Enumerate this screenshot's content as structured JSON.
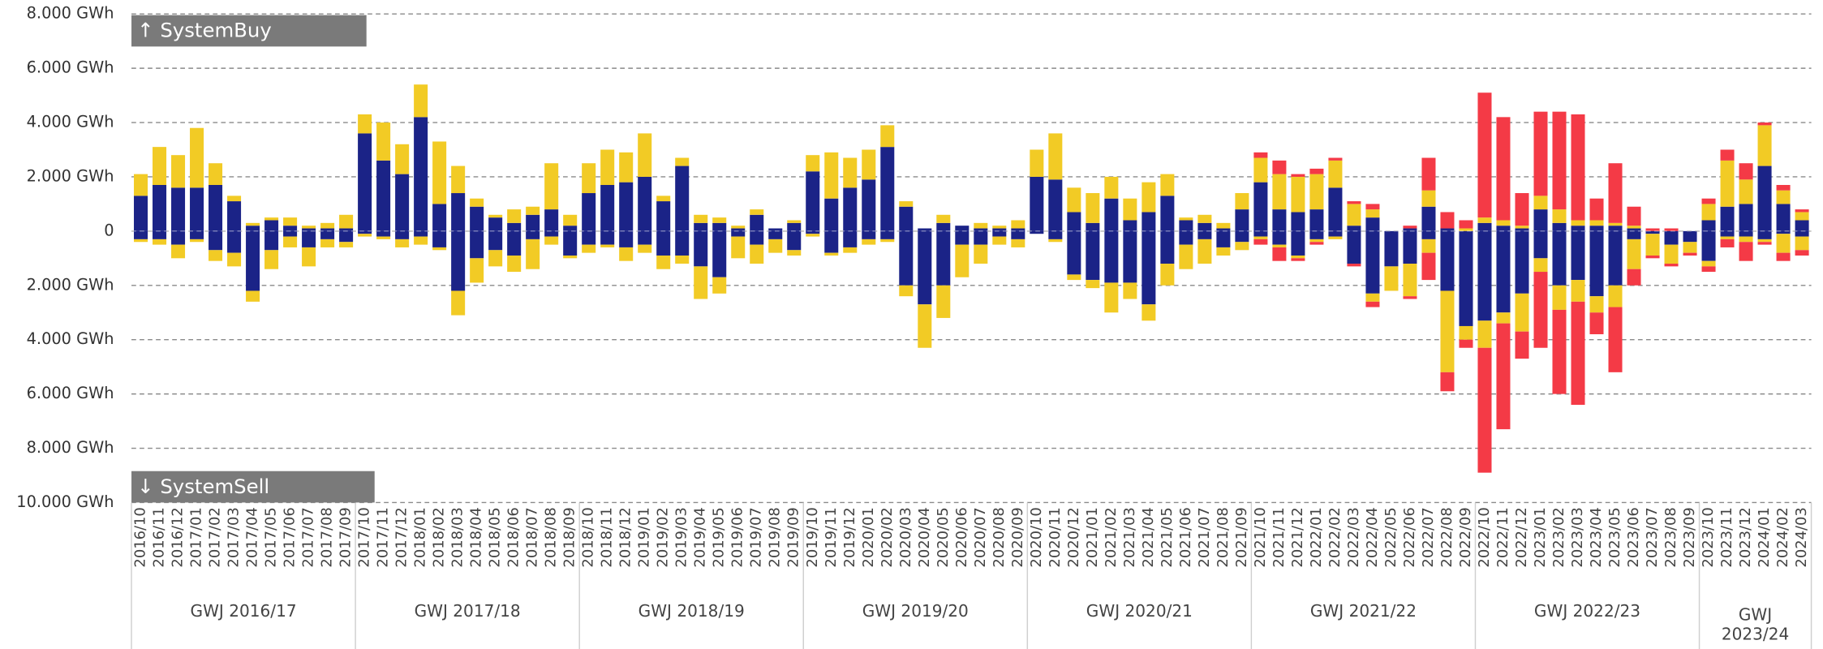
{
  "chart_data": {
    "type": "bar",
    "stacked": true,
    "annotations": [
      "↑ SystemBuy",
      "↓ SystemSell"
    ],
    "groups": [
      "GWJ 2016/17",
      "GWJ 2017/18",
      "GWJ 2018/19",
      "GWJ 2019/20",
      "GWJ 2020/21",
      "GWJ 2021/22",
      "GWJ 2022/23",
      "GWJ 2023/24"
    ],
    "categories": [
      "2016/10",
      "2016/11",
      "2016/12",
      "2017/01",
      "2017/02",
      "2017/03",
      "2017/04",
      "2017/05",
      "2017/06",
      "2017/07",
      "2017/08",
      "2017/09",
      "2017/10",
      "2017/11",
      "2017/12",
      "2018/01",
      "2018/02",
      "2018/03",
      "2018/04",
      "2018/05",
      "2018/06",
      "2018/07",
      "2018/08",
      "2018/09",
      "2018/10",
      "2018/11",
      "2018/12",
      "2019/01",
      "2019/02",
      "2019/03",
      "2019/04",
      "2019/05",
      "2019/06",
      "2019/07",
      "2019/08",
      "2019/09",
      "2019/10",
      "2019/11",
      "2019/12",
      "2020/01",
      "2020/02",
      "2020/03",
      "2020/04",
      "2020/05",
      "2020/06",
      "2020/07",
      "2020/08",
      "2020/09",
      "2020/10",
      "2020/11",
      "2020/12",
      "2021/01",
      "2021/02",
      "2021/03",
      "2021/04",
      "2021/05",
      "2021/06",
      "2021/07",
      "2021/08",
      "2021/09",
      "2021/10",
      "2021/11",
      "2021/12",
      "2022/01",
      "2022/02",
      "2022/03",
      "2022/04",
      "2022/05",
      "2022/06",
      "2022/07",
      "2022/08",
      "2022/09",
      "2022/10",
      "2022/11",
      "2022/12",
      "2023/01",
      "2023/02",
      "2023/03",
      "2023/04",
      "2023/05",
      "2023/06",
      "2023/07",
      "2023/08",
      "2023/09",
      "2023/10",
      "2023/11",
      "2023/12",
      "2024/01",
      "2024/02",
      "2024/03"
    ],
    "series": [
      {
        "color": "#1b2387",
        "values": [
          1300,
          1700,
          1600,
          1600,
          1700,
          1100,
          200,
          400,
          200,
          100,
          100,
          100,
          3600,
          2600,
          2100,
          4200,
          1000,
          1400,
          900,
          500,
          300,
          600,
          800,
          200,
          1400,
          1700,
          1800,
          2000,
          1100,
          2400,
          300,
          300,
          100,
          600,
          100,
          300,
          2200,
          1200,
          1600,
          1900,
          3100,
          900,
          100,
          300,
          200,
          100,
          100,
          100,
          2000,
          1900,
          700,
          300,
          1200,
          400,
          700,
          1300,
          400,
          300,
          100,
          800,
          1800,
          800,
          700,
          800,
          1600,
          200,
          500,
          0,
          100,
          900,
          100,
          0,
          300,
          200,
          100,
          800,
          300,
          200,
          200,
          200,
          100,
          0,
          0,
          0,
          400,
          900,
          1000,
          2400,
          1000,
          400
        ]
      },
      {
        "color": "#f2cb25",
        "values": [
          800,
          1400,
          1200,
          2200,
          800,
          200,
          100,
          100,
          300,
          100,
          200,
          500,
          700,
          1400,
          1100,
          1200,
          2300,
          1000,
          300,
          100,
          500,
          300,
          1700,
          400,
          1100,
          1300,
          1100,
          1600,
          200,
          300,
          300,
          200,
          100,
          200,
          0,
          100,
          600,
          1700,
          1100,
          1100,
          800,
          200,
          0,
          300,
          0,
          200,
          100,
          300,
          1000,
          1700,
          900,
          1100,
          800,
          800,
          1100,
          800,
          100,
          300,
          200,
          600,
          900,
          1300,
          1300,
          1300,
          1000,
          800,
          300,
          0,
          0,
          600,
          0,
          100,
          200,
          200,
          100,
          500,
          500,
          200,
          200,
          100,
          100,
          0,
          0,
          0,
          600,
          1700,
          900,
          1500,
          500,
          300
        ]
      },
      {
        "color": "#f43a46",
        "values": [
          0,
          0,
          0,
          0,
          0,
          0,
          0,
          0,
          0,
          0,
          0,
          0,
          0,
          0,
          0,
          0,
          0,
          0,
          0,
          0,
          0,
          0,
          0,
          0,
          0,
          0,
          0,
          0,
          0,
          0,
          0,
          0,
          0,
          0,
          0,
          0,
          0,
          0,
          0,
          0,
          0,
          0,
          0,
          0,
          0,
          0,
          0,
          0,
          0,
          0,
          0,
          0,
          0,
          0,
          0,
          0,
          0,
          0,
          0,
          0,
          200,
          500,
          100,
          200,
          100,
          100,
          200,
          0,
          100,
          1200,
          600,
          300,
          4600,
          3800,
          1200,
          3100,
          3600,
          3900,
          800,
          2200,
          700,
          100,
          100,
          0,
          200,
          400,
          600,
          100,
          200,
          100
        ]
      },
      {
        "color": "#1b2387",
        "values": [
          -300,
          -300,
          -500,
          -300,
          -700,
          -800,
          -2200,
          -700,
          -200,
          -600,
          -300,
          -400,
          -100,
          -200,
          -300,
          -200,
          -600,
          -2200,
          -1000,
          -700,
          -900,
          -300,
          -200,
          -900,
          -500,
          -500,
          -600,
          -500,
          -900,
          -900,
          -1300,
          -1700,
          -200,
          -500,
          -300,
          -700,
          -100,
          -800,
          -600,
          -300,
          -300,
          -2000,
          -2700,
          -2000,
          -500,
          -500,
          -200,
          -300,
          -100,
          -300,
          -1600,
          -1800,
          -1900,
          -1900,
          -2700,
          -1200,
          -500,
          -300,
          -600,
          -400,
          -200,
          -500,
          -900,
          -300,
          -200,
          -1200,
          -2300,
          -1300,
          -1200,
          -300,
          -2200,
          -3500,
          -3300,
          -3000,
          -2300,
          -1000,
          -2000,
          -1800,
          -2400,
          -2000,
          -300,
          -100,
          -500,
          -400,
          -1100,
          -200,
          -200,
          -300,
          -100,
          -200
        ]
      },
      {
        "color": "#f2cb25",
        "values": [
          -100,
          -200,
          -500,
          -100,
          -400,
          -500,
          -400,
          -700,
          -400,
          -700,
          -300,
          -200,
          -100,
          -100,
          -300,
          -300,
          -100,
          -900,
          -900,
          -600,
          -600,
          -1100,
          -300,
          -100,
          -300,
          -100,
          -500,
          -300,
          -500,
          -300,
          -1200,
          -600,
          -800,
          -700,
          -500,
          -200,
          -100,
          -100,
          -200,
          -200,
          -100,
          -400,
          -1600,
          -1200,
          -1200,
          -700,
          -300,
          -300,
          0,
          -100,
          -200,
          -300,
          -1100,
          -600,
          -600,
          -800,
          -900,
          -900,
          -300,
          -300,
          -100,
          -100,
          -100,
          -100,
          -100,
          0,
          -300,
          -900,
          -1200,
          -500,
          -3000,
          -500,
          -1000,
          -400,
          -1400,
          -500,
          -900,
          -800,
          -600,
          -800,
          -1100,
          -800,
          -700,
          -400,
          -200,
          -100,
          -200,
          -100,
          -700,
          -500
        ]
      },
      {
        "color": "#f43a46",
        "values": [
          0,
          0,
          0,
          0,
          0,
          0,
          0,
          0,
          0,
          0,
          0,
          0,
          0,
          0,
          0,
          0,
          0,
          0,
          0,
          0,
          0,
          0,
          0,
          0,
          0,
          0,
          0,
          0,
          0,
          0,
          0,
          0,
          0,
          0,
          0,
          0,
          0,
          0,
          0,
          0,
          0,
          0,
          0,
          0,
          0,
          0,
          0,
          0,
          0,
          0,
          0,
          0,
          0,
          0,
          0,
          0,
          0,
          0,
          0,
          0,
          -200,
          -500,
          -100,
          -100,
          0,
          -100,
          -200,
          0,
          -100,
          -1000,
          -700,
          -300,
          -4600,
          -3900,
          -1000,
          -2800,
          -3100,
          -3800,
          -800,
          -2400,
          -600,
          -100,
          -100,
          -100,
          -200,
          -300,
          -700,
          -100,
          -300,
          -200
        ]
      }
    ],
    "ylim": [
      -10000,
      8000
    ],
    "yticks": [
      {
        "value": 8000,
        "label": "8.000 GWh"
      },
      {
        "value": 6000,
        "label": "6.000 GWh"
      },
      {
        "value": 4000,
        "label": "4.000 GWh"
      },
      {
        "value": 2000,
        "label": "2.000 GWh"
      },
      0,
      {
        "value": -2000,
        "label": "2.000 GWh"
      },
      {
        "value": -4000,
        "label": "4.000 GWh"
      },
      {
        "value": -6000,
        "label": "6.000 GWh"
      },
      {
        "value": -8000,
        "label": "8.000 GWh"
      },
      {
        "value": -10000,
        "label": "10.000 GWh"
      }
    ],
    "grid": true
  }
}
